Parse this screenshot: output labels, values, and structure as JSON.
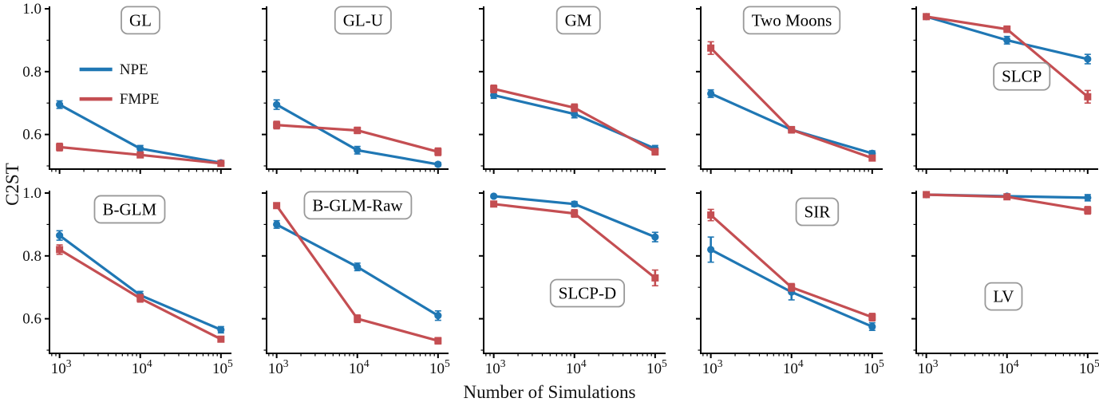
{
  "chart_data": {
    "type": "line",
    "x_scale": "log",
    "x": [
      1000,
      10000,
      100000
    ],
    "xlim": [
      750,
      135000
    ],
    "ylim": [
      0.5,
      1.0
    ],
    "xlabel": "Number of Simulations",
    "ylabel": "C2ST",
    "grid": false,
    "xticks": [
      "10^3",
      "10^4",
      "10^5"
    ],
    "yticks": [
      "1.0",
      "0.8",
      "0.6"
    ],
    "ytick_values": [
      1.0,
      0.8,
      0.6
    ],
    "legend": {
      "panel": "GL",
      "location": "upper-left of first panel",
      "entries": [
        {
          "label": "NPE",
          "color": "#1f77b4",
          "marker": "circle"
        },
        {
          "label": "FMPE",
          "color": "#c44e52",
          "marker": "square"
        }
      ]
    },
    "panels": [
      {
        "title": "GL",
        "title_pos": [
          0.5,
          0.085
        ],
        "series": [
          {
            "name": "NPE",
            "values": [
              0.695,
              0.555,
              0.51
            ],
            "err": [
              0.012,
              0.01,
              0.005
            ]
          },
          {
            "name": "FMPE",
            "values": [
              0.56,
              0.535,
              0.508
            ],
            "err": [
              0.012,
              0.008,
              0.005
            ]
          }
        ]
      },
      {
        "title": "GL-U",
        "title_pos": [
          0.53,
          0.085
        ],
        "series": [
          {
            "name": "NPE",
            "values": [
              0.695,
              0.55,
              0.505
            ],
            "err": [
              0.015,
              0.012,
              0.006
            ]
          },
          {
            "name": "FMPE",
            "values": [
              0.63,
              0.613,
              0.545
            ],
            "err": [
              0.012,
              0.01,
              0.012
            ]
          }
        ]
      },
      {
        "title": "GM",
        "title_pos": [
          0.52,
          0.085
        ],
        "series": [
          {
            "name": "NPE",
            "values": [
              0.725,
              0.665,
              0.555
            ],
            "err": [
              0.01,
              0.012,
              0.01
            ]
          },
          {
            "name": "FMPE",
            "values": [
              0.745,
              0.685,
              0.545
            ],
            "err": [
              0.012,
              0.012,
              0.01
            ]
          }
        ]
      },
      {
        "title": "Two Moons",
        "title_pos": [
          0.5,
          0.085
        ],
        "series": [
          {
            "name": "NPE",
            "values": [
              0.73,
              0.615,
              0.54
            ],
            "err": [
              0.012,
              0.01,
              0.008
            ]
          },
          {
            "name": "FMPE",
            "values": [
              0.875,
              0.615,
              0.525
            ],
            "err": [
              0.02,
              0.01,
              0.008
            ]
          }
        ]
      },
      {
        "title": "SLCP",
        "title_pos": [
          0.58,
          0.43
        ],
        "series": [
          {
            "name": "NPE",
            "values": [
              0.975,
              0.9,
              0.84
            ],
            "err": [
              0.006,
              0.012,
              0.015
            ]
          },
          {
            "name": "FMPE",
            "values": [
              0.975,
              0.935,
              0.72
            ],
            "err": [
              0.006,
              0.01,
              0.02
            ]
          }
        ]
      },
      {
        "title": "B-GLM",
        "title_pos": [
          0.44,
          0.115
        ],
        "series": [
          {
            "name": "NPE",
            "values": [
              0.865,
              0.675,
              0.565
            ],
            "err": [
              0.015,
              0.012,
              0.01
            ]
          },
          {
            "name": "FMPE",
            "values": [
              0.82,
              0.665,
              0.535
            ],
            "err": [
              0.015,
              0.012,
              0.008
            ]
          }
        ]
      },
      {
        "title": "B-GLM-Raw",
        "title_pos": [
          0.5,
          0.09
        ],
        "series": [
          {
            "name": "NPE",
            "values": [
              0.9,
              0.765,
              0.61
            ],
            "err": [
              0.012,
              0.012,
              0.015
            ]
          },
          {
            "name": "FMPE",
            "values": [
              0.96,
              0.6,
              0.53
            ],
            "err": [
              0.008,
              0.012,
              0.01
            ]
          }
        ]
      },
      {
        "title": "SLCP-D",
        "title_pos": [
          0.57,
          0.63
        ],
        "series": [
          {
            "name": "NPE",
            "values": [
              0.99,
              0.965,
              0.86
            ],
            "err": [
              0.004,
              0.008,
              0.015
            ]
          },
          {
            "name": "FMPE",
            "values": [
              0.965,
              0.935,
              0.73
            ],
            "err": [
              0.008,
              0.012,
              0.025
            ]
          }
        ]
      },
      {
        "title": "SIR",
        "title_pos": [
          0.64,
          0.13
        ],
        "series": [
          {
            "name": "NPE",
            "values": [
              0.82,
              0.685,
              0.575
            ],
            "err": [
              0.04,
              0.025,
              0.012
            ]
          },
          {
            "name": "FMPE",
            "values": [
              0.93,
              0.7,
              0.605
            ],
            "err": [
              0.018,
              0.012,
              0.012
            ]
          }
        ]
      },
      {
        "title": "LV",
        "title_pos": [
          0.48,
          0.65
        ],
        "series": [
          {
            "name": "NPE",
            "values": [
              0.995,
              0.99,
              0.985
            ],
            "err": [
              0.003,
              0.003,
              0.01
            ]
          },
          {
            "name": "FMPE",
            "values": [
              0.995,
              0.988,
              0.945
            ],
            "err": [
              0.003,
              0.004,
              0.012
            ]
          }
        ]
      }
    ]
  }
}
